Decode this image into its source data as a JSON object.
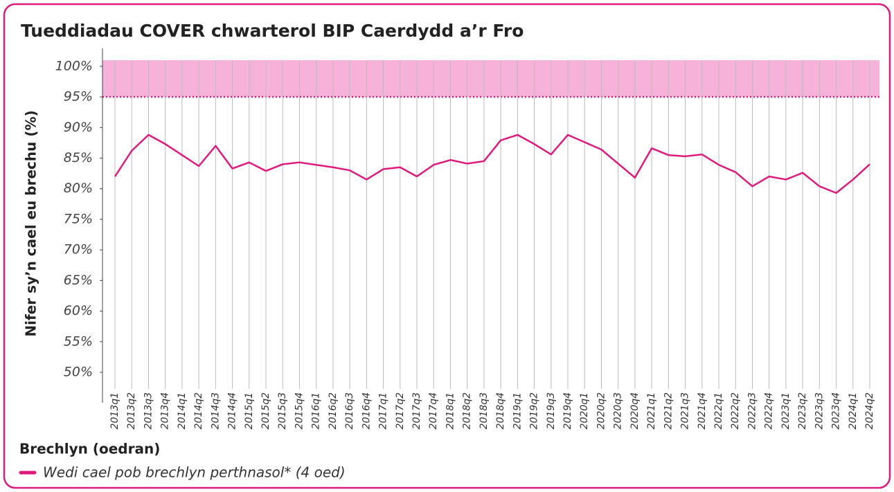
{
  "chart_data": {
    "type": "line",
    "title": "Tueddiadau COVER chwarterol BIP Caerdydd a’r Fro",
    "y_label": "Nifer sy’n cael eu brechu (%)",
    "legend_title": "Brechlyn (oedran)",
    "categories": [
      "2013q1",
      "2013q2",
      "2013q3",
      "2013q4",
      "2014q1",
      "2014q2",
      "2014q3",
      "2014q4",
      "2015q1",
      "2015q2",
      "2015q3",
      "2015q4",
      "2016q1",
      "2016q2",
      "2016q3",
      "2016q4",
      "2017q1",
      "2017q2",
      "2017q3",
      "2017q4",
      "2018q1",
      "2018q2",
      "2018q3",
      "2018q4",
      "2019q1",
      "2019q2",
      "2019q3",
      "2019q4",
      "2020q1",
      "2020q2",
      "2020q3",
      "2020q4",
      "2021q1",
      "2021q2",
      "2021q3",
      "2021q4",
      "2022q1",
      "2022q2",
      "2022q3",
      "2022q4",
      "2023q1",
      "2023q2",
      "2023q3",
      "2023q4",
      "2024q1",
      "2024q2"
    ],
    "series": [
      {
        "name": "Wedi cael pob brechlyn perthnasol* (4 oed)",
        "color": "#e0197d",
        "values": [
          82.0,
          86.2,
          88.8,
          87.3,
          85.5,
          83.7,
          87.0,
          83.3,
          84.3,
          82.9,
          84.0,
          84.3,
          83.9,
          83.5,
          83.0,
          81.5,
          83.2,
          83.5,
          82.0,
          83.9,
          84.7,
          84.1,
          84.5,
          87.9,
          88.8,
          87.3,
          85.6,
          88.8,
          87.6,
          86.4,
          84.1,
          81.8,
          86.6,
          85.5,
          85.3,
          85.6,
          83.9,
          82.7,
          80.4,
          82.0,
          81.5,
          82.6,
          80.4,
          79.3,
          81.5,
          84.0
        ]
      }
    ],
    "target": 95,
    "target_color": "#f7b2da",
    "ylim": [
      50,
      101
    ],
    "yticks": [
      {
        "value": 50,
        "label": "50%"
      },
      {
        "value": 55,
        "label": "55%"
      },
      {
        "value": 60,
        "label": "60%"
      },
      {
        "value": 65,
        "label": "65%"
      },
      {
        "value": 70,
        "label": "70%"
      },
      {
        "value": 75,
        "label": "75%"
      },
      {
        "value": 80,
        "label": "80%"
      },
      {
        "value": 85,
        "label": "85%"
      },
      {
        "value": 90,
        "label": "90%"
      },
      {
        "value": 95,
        "label": "95%"
      },
      {
        "value": 100,
        "label": "100%"
      }
    ],
    "grid": true
  }
}
